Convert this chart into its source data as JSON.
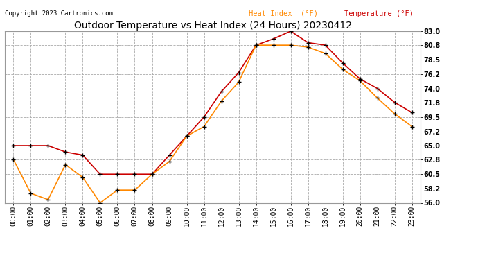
{
  "title": "Outdoor Temperature vs Heat Index (24 Hours) 20230412",
  "copyright": "Copyright 2023 Cartronics.com",
  "legend_heat": "Heat Index  (°F)",
  "legend_temp": "Temperature (°F)",
  "hours": [
    "00:00",
    "01:00",
    "02:00",
    "03:00",
    "04:00",
    "05:00",
    "06:00",
    "07:00",
    "08:00",
    "09:00",
    "10:00",
    "11:00",
    "12:00",
    "13:00",
    "14:00",
    "15:00",
    "16:00",
    "17:00",
    "18:00",
    "19:00",
    "20:00",
    "21:00",
    "22:00",
    "23:00"
  ],
  "temperature": [
    65.0,
    65.0,
    65.0,
    64.0,
    63.5,
    60.5,
    60.5,
    60.5,
    60.5,
    63.5,
    66.5,
    69.5,
    73.5,
    76.5,
    80.8,
    81.8,
    83.0,
    81.2,
    80.8,
    78.0,
    75.5,
    74.0,
    71.8,
    70.2
  ],
  "heat_index": [
    62.8,
    57.5,
    56.5,
    62.0,
    60.0,
    56.0,
    58.0,
    58.0,
    60.5,
    62.5,
    66.5,
    68.0,
    72.0,
    75.0,
    80.8,
    80.8,
    80.8,
    80.5,
    79.5,
    77.0,
    75.2,
    72.5,
    70.0,
    68.0
  ],
  "temp_color": "#cc0000",
  "heat_color": "#ff8800",
  "marker_color": "black",
  "background_color": "#ffffff",
  "grid_color": "#aaaaaa",
  "ylim_min": 56.0,
  "ylim_max": 83.0,
  "yticks": [
    56.0,
    58.2,
    60.5,
    62.8,
    65.0,
    67.2,
    69.5,
    71.8,
    74.0,
    76.2,
    78.5,
    80.8,
    83.0
  ],
  "title_fontsize": 10,
  "tick_fontsize": 7,
  "legend_fontsize": 7.5,
  "copyright_fontsize": 6.5
}
